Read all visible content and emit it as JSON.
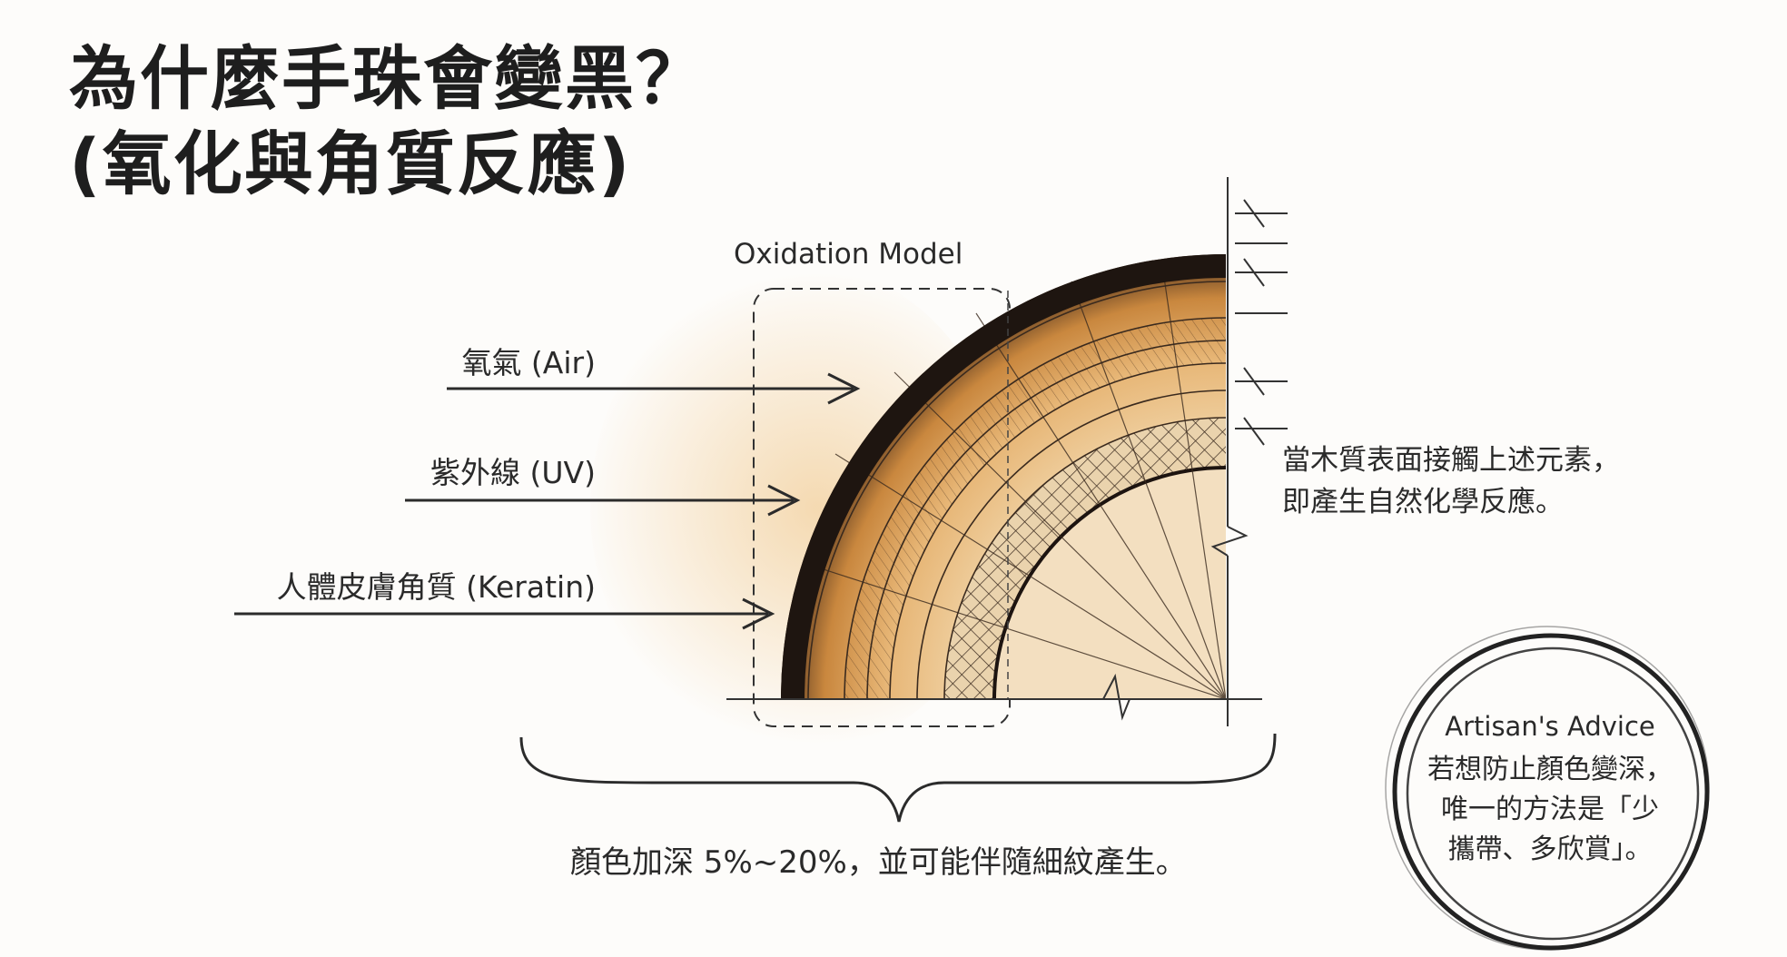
{
  "title": {
    "line1": "為什麼手珠會變黑？",
    "line2": "(氧化與角質反應)"
  },
  "diagram": {
    "model_label": "Oxidation Model",
    "inputs": [
      {
        "label": "氧氣 (Air)"
      },
      {
        "label": "紫外線 (UV)"
      },
      {
        "label": "人體皮膚角質 (Keratin)"
      }
    ],
    "side_note": {
      "line1": "當木質表面接觸上述元素，",
      "line2": "即產生自然化學反應。"
    },
    "summary": "顏色加深 5%~20%，並可能伴隨細紋產生。"
  },
  "advice": {
    "title": "Artisan's Advice",
    "line1": "若想防止顏色變深，",
    "line2": "唯一的方法是「少",
    "line3": "攜帶、多欣賞」。"
  },
  "colors": {
    "wood_light": "#f3dcb8",
    "wood_mid": "#e3a862",
    "wood_dark": "#2a1c12",
    "ink": "#2b2b2b"
  }
}
